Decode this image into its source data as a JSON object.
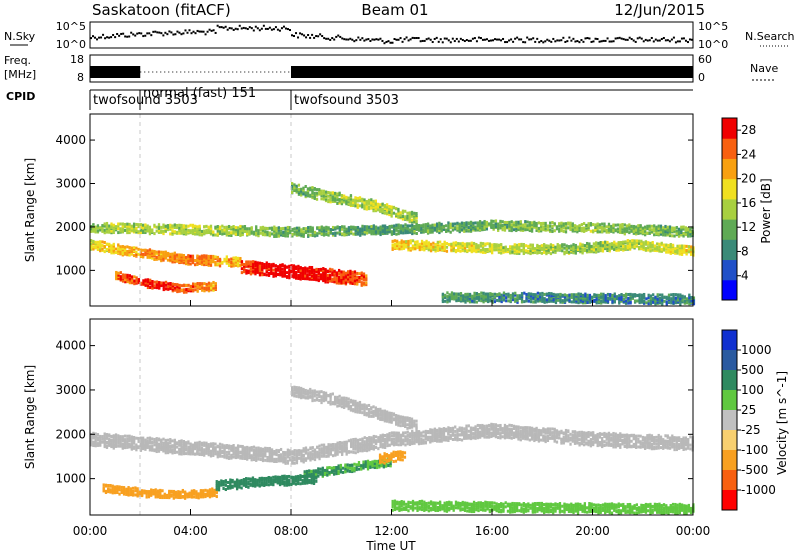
{
  "header": {
    "station": "Saskatoon (fitACF)",
    "beam": "Beam 01",
    "date": "12/Jun/2015"
  },
  "panels": {
    "nsky": {
      "label": "N.Sky",
      "left_ticks": [
        "10^5",
        "10^0"
      ],
      "right_ticks": [
        "10^5",
        "10^0"
      ],
      "right_label": "N.Search"
    },
    "freq": {
      "label_line1": "Freq.",
      "label_line2": "[MHz]",
      "left_ticks": [
        "18",
        "8"
      ],
      "right_ticks": [
        "60",
        "0"
      ],
      "right_label": "Nave"
    },
    "cpid": {
      "label": "CPID",
      "segments": [
        {
          "start_hour": 0,
          "end_hour": 2,
          "name": "twofsound 3503"
        },
        {
          "start_hour": 2,
          "end_hour": 8,
          "name": "normal (fast) 151"
        },
        {
          "start_hour": 8,
          "end_hour": 24,
          "name": "twofsound 3503"
        }
      ]
    }
  },
  "colors": {
    "power_scale": [
      "#0000ff",
      "#2050c8",
      "#3a8a78",
      "#5faa55",
      "#a8d040",
      "#f0e020",
      "#f8a010",
      "#f86010",
      "#f00000"
    ],
    "velocity_scale": [
      "#1030d0",
      "#2a5aa0",
      "#2f8a60",
      "#60c840",
      "#c0c0c0",
      "#f8d070",
      "#f8a020",
      "#f86010",
      "#ff0000"
    ],
    "ground_scatter": "#b8b8b8"
  },
  "chart_data": [
    {
      "type": "heatmap",
      "id": "power",
      "ylabel": "Slant Range [km]",
      "xlabel": "Time UT",
      "xlim": [
        0,
        24
      ],
      "ylim": [
        180,
        4600
      ],
      "x_tick_labels": [
        "00:00",
        "04:00",
        "08:00",
        "12:00",
        "16:00",
        "20:00",
        "00:00"
      ],
      "y_ticks": [
        1000,
        2000,
        3000,
        4000
      ],
      "colorbar_label": "Power [dB]",
      "colorbar_ticks": [
        4,
        8,
        12,
        16,
        20,
        24,
        28
      ],
      "colorbar_range": [
        0,
        30
      ],
      "bands": [
        {
          "t_start": 0,
          "t_end": 24,
          "r_center": [
            2000,
            1950,
            1900,
            1950,
            2050,
            2000,
            1900
          ],
          "r_width": 220,
          "value": [
            14,
            16,
            12,
            10,
            12,
            14,
            12
          ]
        },
        {
          "t_start": 0,
          "t_end": 6,
          "r_center": [
            1600,
            1400,
            1250,
            1200
          ],
          "r_width": 200,
          "value": [
            18,
            22,
            24,
            20
          ]
        },
        {
          "t_start": 1,
          "t_end": 5,
          "r_center": [
            900,
            700,
            600,
            650
          ],
          "r_width": 180,
          "value": [
            24,
            28,
            26,
            22
          ]
        },
        {
          "t_start": 6,
          "t_end": 11,
          "r_center": [
            1100,
            1000,
            900,
            800
          ],
          "r_width": 300,
          "value": [
            26,
            30,
            28,
            24
          ]
        },
        {
          "t_start": 8,
          "t_end": 13,
          "r_center": [
            2900,
            2700,
            2500,
            2200
          ],
          "r_width": 250,
          "value": [
            12,
            14,
            16,
            14
          ]
        },
        {
          "t_start": 12,
          "t_end": 24,
          "r_center": [
            1600,
            1550,
            1500,
            1500,
            1600,
            1450
          ],
          "r_width": 200,
          "value": [
            20,
            18,
            16,
            14,
            16,
            18
          ]
        },
        {
          "t_start": 14,
          "t_end": 24,
          "r_center": [
            400,
            380,
            350
          ],
          "r_width": 220,
          "value": [
            10,
            8,
            8
          ]
        }
      ]
    },
    {
      "type": "heatmap",
      "id": "velocity",
      "ylabel": "Slant Range [km]",
      "xlabel": "Time UT",
      "xlim": [
        0,
        24
      ],
      "ylim": [
        180,
        4600
      ],
      "x_tick_labels": [
        "00:00",
        "04:00",
        "08:00",
        "12:00",
        "16:00",
        "20:00",
        "00:00"
      ],
      "y_ticks": [
        1000,
        2000,
        3000,
        4000
      ],
      "colorbar_label": "Velocity [m s^-1]",
      "colorbar_ticks": [
        "1000",
        "500",
        "100",
        "25",
        "-25",
        "-100",
        "-500",
        "-1000"
      ],
      "bands": [
        {
          "t_start": 0,
          "t_end": 24,
          "r_center": [
            1900,
            1700,
            1500,
            1900,
            2100,
            1900,
            1800
          ],
          "r_width": 300,
          "value": [
            0,
            0,
            0,
            0,
            0,
            0,
            0
          ]
        },
        {
          "t_start": 0.5,
          "t_end": 5,
          "r_center": [
            800,
            700,
            650,
            700
          ],
          "r_width": 180,
          "value": [
            -150,
            -200,
            -300,
            -150
          ]
        },
        {
          "t_start": 5,
          "t_end": 9,
          "r_center": [
            850,
            950,
            1000
          ],
          "r_width": 200,
          "value": [
            300,
            200,
            150
          ]
        },
        {
          "t_start": 8.5,
          "t_end": 12,
          "r_center": [
            1100,
            1250,
            1400
          ],
          "r_width": 180,
          "value": [
            120,
            100,
            90
          ]
        },
        {
          "t_start": 8,
          "t_end": 13,
          "r_center": [
            3000,
            2800,
            2500,
            2200
          ],
          "r_width": 250,
          "value": [
            0,
            0,
            0,
            0
          ]
        },
        {
          "t_start": 11.5,
          "t_end": 12.5,
          "r_center": [
            1450,
            1550
          ],
          "r_width": 200,
          "value": [
            -150,
            -200
          ]
        },
        {
          "t_start": 12,
          "t_end": 24,
          "r_center": [
            400,
            350,
            320
          ],
          "r_width": 200,
          "value": [
            60,
            40,
            50
          ]
        }
      ]
    }
  ]
}
